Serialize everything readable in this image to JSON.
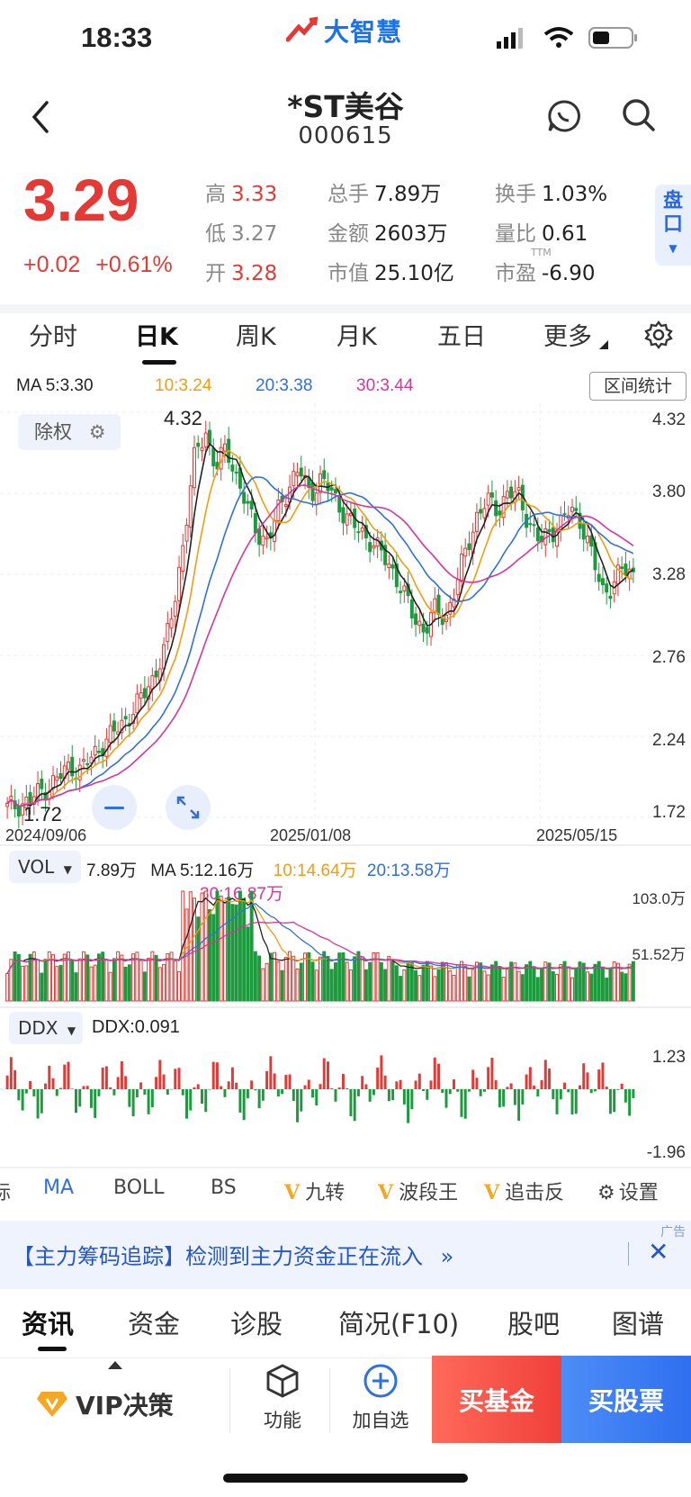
{
  "status_bar": {
    "time": "18:33",
    "logo_text": "大智慧"
  },
  "header": {
    "stock_name": "*ST美谷",
    "stock_code": "000615"
  },
  "quote": {
    "price": "3.29",
    "change": "+0.02",
    "change_pct": "+0.61%",
    "high_label": "高",
    "high": "3.33",
    "low_label": "低",
    "low": "3.27",
    "open_label": "开",
    "open": "3.28",
    "volume_label": "总手",
    "volume": "7.89万",
    "amount_label": "金额",
    "amount": "2603万",
    "mcap_label": "市值",
    "mcap": "25.10亿",
    "turnover_label": "换手",
    "turnover": "1.03%",
    "vol_ratio_label": "量比",
    "vol_ratio": "0.61",
    "pe_label": "市盈",
    "pe_tag": "TTM",
    "pe": "-6.90",
    "pankou": "盘口"
  },
  "kline_tabs": [
    "分时",
    "日K",
    "周K",
    "月K",
    "五日",
    "更多"
  ],
  "active_tab": "日K",
  "ma_legend": {
    "ma5": "MA 5:3.30",
    "ma10": "10:3.24",
    "ma20": "20:3.38",
    "ma30": "30:3.44"
  },
  "range_stats": "区间统计",
  "adjust_chip": "除权",
  "price_axis": [
    "4.32",
    "3.80",
    "3.28",
    "2.76",
    "2.24",
    "1.72"
  ],
  "high_mark": "4.32",
  "low_mark": "1.72",
  "dates": [
    "2024/09/06",
    "2025/01/08",
    "2025/05/15"
  ],
  "vol_panel": {
    "chip": "VOL",
    "value": "7.89万",
    "ma5": "MA 5:12.16万",
    "ma10": "10:14.64万",
    "ma20": "20:13.58万",
    "ma30": "30:16.87万",
    "axis_top": "103.0万",
    "axis_mid": "51.52万"
  },
  "ddx_panel": {
    "chip": "DDX",
    "value": "DDX:0.091",
    "axis_top": "1.23",
    "axis_bottom": "-1.96"
  },
  "indicators": {
    "partial": "标",
    "ma": "MA",
    "boll": "BOLL",
    "bs": "BS",
    "jiuzhuan": "九转",
    "boduan": "波段王",
    "zhuiji": "追击反",
    "settings": "设置"
  },
  "ad": {
    "text": "【主力筹码追踪】检测到主力资金正在流入",
    "tag": "广告"
  },
  "info_tabs": [
    "资讯",
    "资金",
    "诊股",
    "简况(F10)",
    "股吧",
    "图谱"
  ],
  "bottom_bar": {
    "vip": "VIP决策",
    "func": "功能",
    "add": "加自选",
    "buy_fund": "买基金",
    "buy_stock": "买股票"
  },
  "colors": {
    "up": "#e53935",
    "down": "#1e9a3e",
    "ma5": "#222222",
    "ma10": "#f39c12",
    "ma20": "#2f6fe0",
    "ma30": "#d6359a"
  },
  "chart_data": {
    "type": "candlestick",
    "price_range": [
      1.72,
      4.32
    ],
    "close_path": [
      1.78,
      1.8,
      1.82,
      1.88,
      1.92,
      1.98,
      2.05,
      2.02,
      2.1,
      2.18,
      2.25,
      2.32,
      2.4,
      2.5,
      2.62,
      2.78,
      3.1,
      3.55,
      4.05,
      4.2,
      3.95,
      4.1,
      3.9,
      3.7,
      3.55,
      3.48,
      3.7,
      3.85,
      3.95,
      3.8,
      3.88,
      3.82,
      3.7,
      3.6,
      3.55,
      3.48,
      3.4,
      3.3,
      3.15,
      3.0,
      2.92,
      3.05,
      3.0,
      3.2,
      3.45,
      3.65,
      3.75,
      3.7,
      3.8,
      3.78,
      3.62,
      3.48,
      3.55,
      3.6,
      3.7,
      3.62,
      3.4,
      3.18,
      3.2,
      3.32,
      3.29
    ]
  }
}
